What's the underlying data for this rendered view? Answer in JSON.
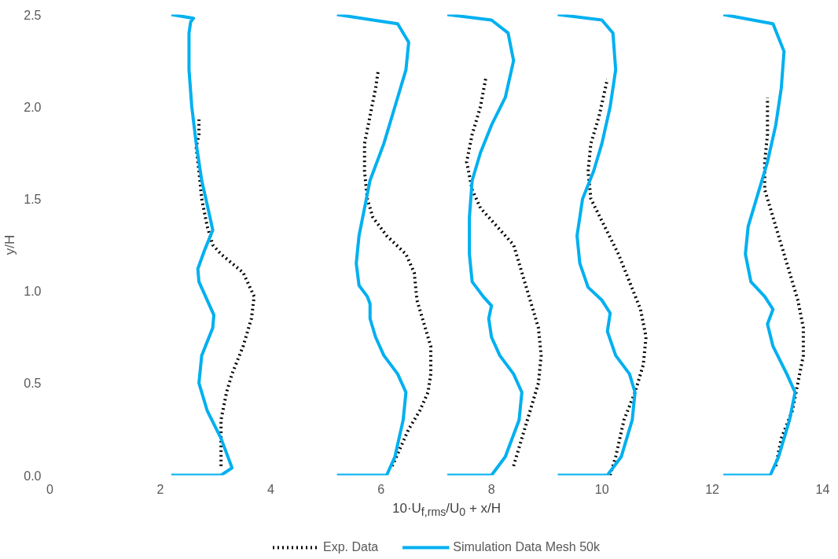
{
  "chart_data": {
    "type": "line",
    "xlabel": "10·U$_{f,rms}$/U$_{0}$ + x/H",
    "ylabel": "y/H",
    "xlim": [
      0,
      14
    ],
    "ylim": [
      0,
      2.5
    ],
    "xticks": [
      0,
      2,
      4,
      6,
      8,
      10,
      12,
      14
    ],
    "yticks": [
      {
        "value": 0,
        "label": "0.0"
      },
      {
        "value": 0.5,
        "label": "0.5"
      },
      {
        "value": 1,
        "label": "1.0"
      },
      {
        "value": 1.5,
        "label": "1.5"
      },
      {
        "value": 2,
        "label": "2.0"
      },
      {
        "value": 2.5,
        "label": "2.5"
      }
    ],
    "grid": false,
    "legend": "bottom",
    "series": [
      {
        "name": "Exp. Data",
        "color": "#000000",
        "line_style": "dotted",
        "x": [
          3.1,
          3.1,
          3.1,
          3.2,
          3.3,
          3.5,
          3.65,
          3.7,
          3.5,
          3.1,
          2.95,
          2.85,
          2.75,
          2.7,
          2.65,
          2.7,
          2.7,
          null,
          6.2,
          6.35,
          6.5,
          6.7,
          6.85,
          6.9,
          6.9,
          6.8,
          6.65,
          6.6,
          6.45,
          6.1,
          5.85,
          5.75,
          5.7,
          5.7,
          5.8,
          5.9,
          5.95,
          null,
          8.4,
          8.55,
          8.7,
          8.85,
          8.9,
          8.85,
          8.7,
          8.55,
          8.4,
          8.1,
          7.8,
          7.65,
          7.55,
          7.65,
          7.8,
          7.9,
          null,
          10.15,
          10.25,
          10.4,
          10.6,
          10.75,
          10.8,
          10.7,
          10.5,
          10.3,
          10.05,
          9.8,
          9.75,
          9.8,
          9.95,
          10.1,
          null,
          13.15,
          13.25,
          13.45,
          13.55,
          13.65,
          13.65,
          13.55,
          13.4,
          13.25,
          13.1,
          12.95,
          12.95,
          13.0,
          13.0
        ],
        "values": [
          0.05,
          0.2,
          0.3,
          0.45,
          0.55,
          0.7,
          0.85,
          0.97,
          1.1,
          1.2,
          1.25,
          1.35,
          1.5,
          1.65,
          1.78,
          1.85,
          1.93,
          null,
          0.05,
          0.15,
          0.25,
          0.35,
          0.45,
          0.55,
          0.7,
          0.8,
          0.95,
          1.1,
          1.2,
          1.3,
          1.4,
          1.5,
          1.65,
          1.8,
          1.95,
          2.1,
          2.2,
          null,
          0.05,
          0.2,
          0.35,
          0.5,
          0.65,
          0.8,
          0.95,
          1.1,
          1.25,
          1.35,
          1.45,
          1.55,
          1.7,
          1.85,
          2.0,
          2.16,
          null,
          0.0,
          0.1,
          0.3,
          0.45,
          0.6,
          0.75,
          0.9,
          1.05,
          1.2,
          1.35,
          1.5,
          1.65,
          1.8,
          1.95,
          2.15,
          null,
          0.05,
          0.2,
          0.35,
          0.5,
          0.65,
          0.8,
          0.95,
          1.1,
          1.25,
          1.4,
          1.55,
          1.7,
          1.85,
          2.05
        ]
      },
      {
        "name": "Simulation Data Mesh 50k",
        "color": "#00b0f0",
        "line_style": "solid",
        "x": [
          2.2,
          3.1,
          3.3,
          3.1,
          2.85,
          2.7,
          2.75,
          2.95,
          2.97,
          2.85,
          2.7,
          2.68,
          2.8,
          2.95,
          2.9,
          2.75,
          2.65,
          2.57,
          2.52,
          2.52,
          2.55,
          2.6,
          2.2,
          null,
          5.2,
          6.1,
          6.25,
          6.4,
          6.45,
          6.3,
          6.05,
          5.9,
          5.8,
          5.8,
          5.75,
          5.6,
          5.55,
          5.6,
          5.7,
          5.8,
          6.05,
          6.25,
          6.45,
          6.5,
          6.3,
          5.2,
          null,
          7.2,
          8.0,
          8.25,
          8.5,
          8.55,
          8.4,
          8.15,
          8.0,
          7.95,
          8.0,
          7.85,
          7.65,
          7.6,
          7.6,
          7.65,
          7.8,
          8.0,
          8.25,
          8.4,
          8.3,
          8.0,
          7.2,
          null,
          9.2,
          10.1,
          10.35,
          10.55,
          10.6,
          10.5,
          10.25,
          10.1,
          10.15,
          10.0,
          9.75,
          9.6,
          9.55,
          9.65,
          9.85,
          10.0,
          10.15,
          10.25,
          10.2,
          10.0,
          9.2,
          null,
          12.2,
          13.05,
          13.2,
          13.4,
          13.5,
          13.35,
          13.1,
          13.0,
          13.1,
          12.95,
          12.7,
          12.6,
          12.65,
          12.85,
          13.0,
          13.15,
          13.25,
          13.3,
          13.1,
          12.2
        ],
        "values": [
          0.0,
          0.0,
          0.04,
          0.2,
          0.35,
          0.5,
          0.65,
          0.8,
          0.87,
          0.95,
          1.05,
          1.12,
          1.22,
          1.33,
          1.4,
          1.6,
          1.8,
          2.0,
          2.2,
          2.4,
          2.46,
          2.48,
          2.5,
          null,
          0.0,
          0.0,
          0.1,
          0.3,
          0.45,
          0.55,
          0.65,
          0.75,
          0.85,
          0.93,
          0.97,
          1.03,
          1.15,
          1.3,
          1.45,
          1.6,
          1.8,
          2.0,
          2.2,
          2.35,
          2.45,
          2.5,
          null,
          0.0,
          0.0,
          0.1,
          0.3,
          0.45,
          0.55,
          0.65,
          0.75,
          0.85,
          0.92,
          0.97,
          1.05,
          1.2,
          1.4,
          1.6,
          1.75,
          1.9,
          2.05,
          2.25,
          2.4,
          2.47,
          2.5,
          null,
          0.0,
          0.0,
          0.1,
          0.3,
          0.45,
          0.55,
          0.65,
          0.78,
          0.88,
          0.95,
          1.02,
          1.15,
          1.3,
          1.5,
          1.65,
          1.8,
          2.0,
          2.2,
          2.4,
          2.47,
          2.5,
          null,
          0.0,
          0.0,
          0.1,
          0.3,
          0.45,
          0.55,
          0.7,
          0.82,
          0.9,
          0.97,
          1.05,
          1.2,
          1.35,
          1.55,
          1.7,
          1.9,
          2.1,
          2.3,
          2.45,
          2.5
        ]
      }
    ]
  }
}
